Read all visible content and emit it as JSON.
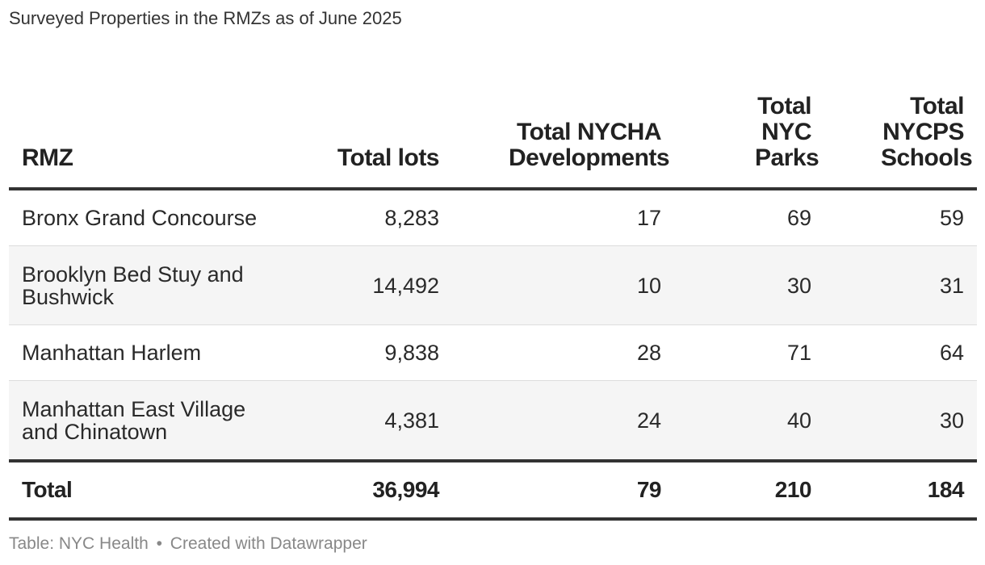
{
  "title": "Surveyed Properties in the RMZs as of June 2025",
  "table": {
    "headers": [
      "RMZ",
      "Total lots",
      "Total NYCHA Developments",
      "Total NYC Parks",
      "Total NYCPS Schools"
    ],
    "rows": [
      [
        "Bronx Grand Concourse",
        "8,283",
        "17",
        "69",
        "59"
      ],
      [
        "Brooklyn Bed Stuy and Bushwick",
        "14,492",
        "10",
        "30",
        "31"
      ],
      [
        "Manhattan Harlem",
        "9,838",
        "28",
        "71",
        "64"
      ],
      [
        "Manhattan East Village and Chinatown",
        "4,381",
        "24",
        "40",
        "30"
      ]
    ],
    "total": [
      "Total",
      "36,994",
      "79",
      "210",
      "184"
    ]
  },
  "chart_data": {
    "type": "table",
    "title": "Surveyed Properties in the RMZs as of June 2025",
    "columns": [
      "RMZ",
      "Total lots",
      "Total NYCHA Developments",
      "Total NYC Parks",
      "Total NYCPS Schools"
    ],
    "rows": [
      {
        "RMZ": "Bronx Grand Concourse",
        "Total lots": 8283,
        "Total NYCHA Developments": 17,
        "Total NYC Parks": 69,
        "Total NYCPS Schools": 59
      },
      {
        "RMZ": "Brooklyn Bed Stuy and Bushwick",
        "Total lots": 14492,
        "Total NYCHA Developments": 10,
        "Total NYC Parks": 30,
        "Total NYCPS Schools": 31
      },
      {
        "RMZ": "Manhattan Harlem",
        "Total lots": 9838,
        "Total NYCHA Developments": 28,
        "Total NYC Parks": 71,
        "Total NYCPS Schools": 64
      },
      {
        "RMZ": "Manhattan East Village and Chinatown",
        "Total lots": 4381,
        "Total NYCHA Developments": 24,
        "Total NYC Parks": 40,
        "Total NYCPS Schools": 30
      }
    ],
    "totals": {
      "RMZ": "Total",
      "Total lots": 36994,
      "Total NYCHA Developments": 79,
      "Total NYC Parks": 210,
      "Total NYCPS Schools": 184
    }
  },
  "footer": {
    "source": "Table: NYC Health",
    "separator": "•",
    "credit": "Created with Datawrapper"
  }
}
